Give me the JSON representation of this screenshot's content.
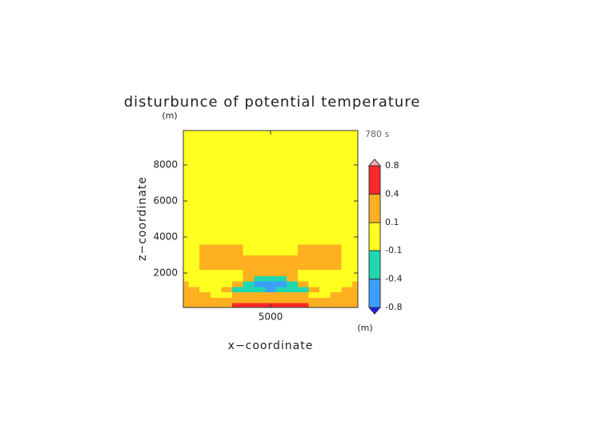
{
  "chart_data": {
    "type": "contour",
    "title": "disturbunce of potential temperature",
    "xlabel": "x−coordinate",
    "ylabel": "z−coordinate",
    "xunit": "(m)",
    "yunit": "(m)",
    "time_label": "780 s",
    "xlim": [
      0,
      10000
    ],
    "ylim": [
      100,
      9900
    ],
    "xticks": [
      5000
    ],
    "yticks": [
      2000,
      4000,
      6000,
      8000
    ],
    "x": [
      0,
      625,
      1250,
      1875,
      2500,
      3125,
      3750,
      4375,
      5000,
      5625,
      6250,
      6875,
      7500,
      8125,
      8750,
      9375,
      10000
    ],
    "z": [
      200,
      500,
      800,
      1100,
      1400,
      1700,
      2000,
      2400,
      2800,
      3200,
      4000,
      6000,
      8500
    ],
    "values": [
      [
        0.2,
        0.2,
        0.2,
        0.2,
        0.2,
        0.5,
        0.5,
        0.5,
        0.5,
        0.5,
        0.5,
        0.5,
        0.2,
        0.2,
        0.2,
        0.2,
        0.2
      ],
      [
        0.2,
        0.2,
        0.2,
        0.2,
        0.2,
        0.2,
        0.2,
        0.2,
        0.2,
        0.2,
        0.2,
        0.2,
        0.2,
        0.2,
        0.2,
        0.2,
        0.2
      ],
      [
        0.2,
        0.2,
        0.2,
        0,
        0,
        0.2,
        0.2,
        0.2,
        0.2,
        0.2,
        0.2,
        0.2,
        0,
        0,
        0.2,
        0.2,
        0.2
      ],
      [
        0.2,
        0.2,
        0,
        0,
        0.2,
        -0.2,
        -0.2,
        -0.2,
        -0.5,
        -0.2,
        -0.2,
        -0.2,
        0.2,
        0,
        0,
        0.2,
        0.2
      ],
      [
        0.2,
        0,
        0,
        0,
        0,
        0.2,
        -0.2,
        -0.5,
        -0.5,
        -0.5,
        -0.2,
        0.2,
        0,
        0,
        0,
        0,
        0.2
      ],
      [
        0,
        0,
        0,
        0,
        0,
        0,
        0.2,
        -0.2,
        -0.2,
        -0.2,
        0.2,
        0,
        0,
        0,
        0,
        0,
        0
      ],
      [
        0,
        0,
        0,
        0,
        0,
        0,
        0.2,
        0.2,
        0.2,
        0.2,
        0.2,
        0,
        0,
        0,
        0,
        0,
        0
      ],
      [
        0,
        0,
        0.2,
        0.2,
        0.2,
        0.2,
        0.2,
        0.2,
        0.2,
        0.2,
        0.2,
        0.2,
        0.2,
        0.2,
        0.2,
        0,
        0
      ],
      [
        0,
        0,
        0.2,
        0.2,
        0.2,
        0.2,
        0.2,
        0.2,
        0.2,
        0.2,
        0.2,
        0.2,
        0.2,
        0.2,
        0.2,
        0,
        0
      ],
      [
        0,
        0,
        0.2,
        0.2,
        0.2,
        0.2,
        0,
        0,
        0,
        0,
        0,
        0.2,
        0.2,
        0.2,
        0.2,
        0,
        0
      ],
      [
        0,
        0,
        0,
        0,
        0,
        0,
        0,
        0,
        0,
        0,
        0,
        0,
        0,
        0,
        0,
        0,
        0
      ],
      [
        0,
        0,
        0,
        0,
        0,
        0,
        0,
        0,
        0,
        0,
        0,
        0,
        0,
        0,
        0,
        0,
        0
      ],
      [
        0,
        0,
        0,
        0,
        0,
        0,
        0,
        0,
        0,
        0,
        0,
        0,
        0,
        0,
        0,
        0,
        0
      ]
    ],
    "colorbar": {
      "levels": [
        -0.8,
        -0.4,
        -0.1,
        0.1,
        0.4,
        0.8
      ],
      "colors": [
        "#1a1aff",
        "#3aa0ff",
        "#20d8b0",
        "#ffff20",
        "#ffb020",
        "#ff2828",
        "#ffb0b0"
      ]
    }
  }
}
